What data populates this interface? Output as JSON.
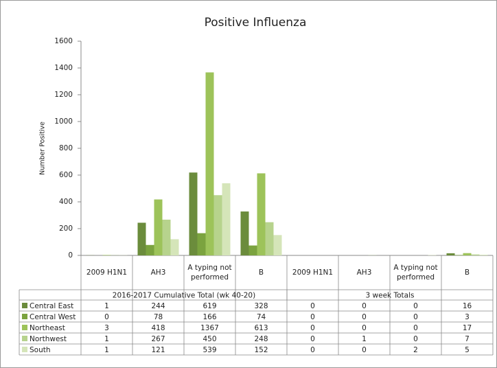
{
  "chart_data": {
    "type": "bar",
    "title": "Positive Influenza",
    "y_label": "Number Positive",
    "categories": [
      "2009 H1N1",
      "AH3",
      "A typing not performed",
      "B",
      "2009 H1N1",
      "AH3",
      "A typing not performed",
      "B"
    ],
    "groups": [
      "2016-2017 Cumulative Total (wk 40-20)",
      "3 week Totals"
    ],
    "series": [
      {
        "name": "Central East",
        "color": "#6b8c3c",
        "values": [
          1,
          244,
          619,
          328,
          0,
          0,
          0,
          16
        ]
      },
      {
        "name": "Central West",
        "color": "#7ba33f",
        "values": [
          0,
          78,
          166,
          74,
          0,
          0,
          0,
          3
        ]
      },
      {
        "name": "Northeast",
        "color": "#9dc35a",
        "values": [
          3,
          418,
          1367,
          613,
          0,
          0,
          0,
          17
        ]
      },
      {
        "name": "Northwest",
        "color": "#b7d38d",
        "values": [
          1,
          267,
          450,
          248,
          0,
          1,
          0,
          7
        ]
      },
      {
        "name": "South",
        "color": "#d5e5b9",
        "values": [
          1,
          121,
          539,
          152,
          0,
          0,
          2,
          5
        ]
      }
    ],
    "ylim": [
      0,
      1600
    ],
    "yticks": [
      0,
      200,
      400,
      600,
      800,
      1000,
      1200,
      1400,
      1600
    ],
    "grid": false
  }
}
